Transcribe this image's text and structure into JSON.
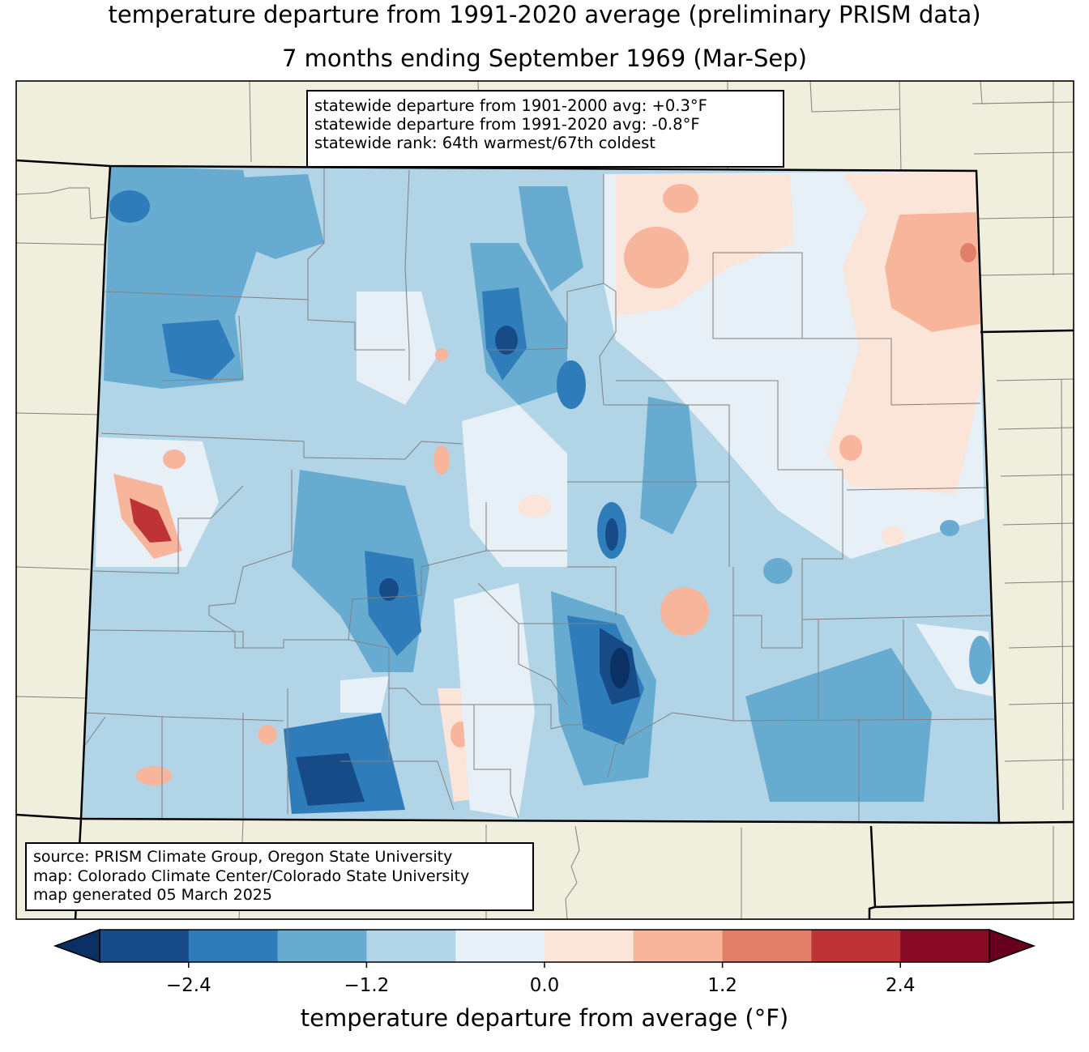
{
  "title": {
    "line1": "temperature departure from 1991-2020 average (preliminary PRISM data)",
    "line2": "7 months ending September 1969 (Mar-Sep)"
  },
  "stats": {
    "line1": "statewide departure from 1901-2000 avg: +0.3°F",
    "line2": "statewide departure from 1991-2020 avg: -0.8°F",
    "line3": "statewide rank: 64th warmest/67th coldest"
  },
  "source": {
    "line1": "source: PRISM Climate Group, Oregon State University",
    "line2": "map: Colorado Climate Center/Colorado State University",
    "line3": "map generated 05 March 2025"
  },
  "colorbar": {
    "label": "temperature departure from average (°F)",
    "ticks": [
      "−2.4",
      "−1.2",
      "0.0",
      "1.2",
      "2.4"
    ],
    "tick_values": [
      -2.4,
      -1.2,
      0.0,
      1.2,
      2.4
    ],
    "bins": [
      -3.0,
      -2.4,
      -1.8,
      -1.2,
      -0.6,
      0.0,
      0.6,
      1.2,
      1.8,
      2.4,
      3.0
    ],
    "colors": [
      "#164b87",
      "#2f7cba",
      "#68abd1",
      "#b1d4e7",
      "#e7eff7",
      "#fbe4d8",
      "#f7b69b",
      "#e27f68",
      "#be3338",
      "#880a26"
    ],
    "under_color": "#0a3064",
    "over_color": "#67001f"
  },
  "colors": {
    "land": "#f0efdd",
    "base_field": "#b1d4e7",
    "state_border": "#000000",
    "county_border": "#808080"
  }
}
